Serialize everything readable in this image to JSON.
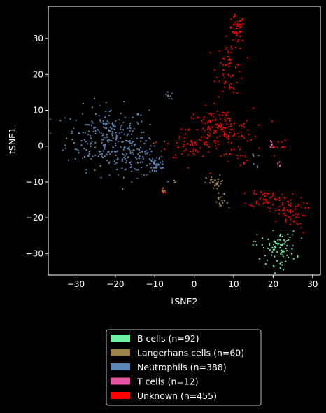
{
  "chart_data": {
    "type": "scatter",
    "xlabel": "tSNE2",
    "ylabel": "tSNE1",
    "xlim": [
      -37,
      32
    ],
    "ylim": [
      -36,
      39
    ],
    "xticks": [
      -30,
      -20,
      -10,
      0,
      10,
      20,
      30
    ],
    "yticks": [
      -30,
      -20,
      -10,
      0,
      10,
      20,
      30
    ],
    "grid": false,
    "legend_placement": "bottom-center, below plot",
    "background": "#000000",
    "series": [
      {
        "name": "B cells (n=92)",
        "color": "#6cf0a2",
        "n": 92,
        "clusters": [
          {
            "cx": 21.5,
            "cy": -28.5,
            "sx": 2.2,
            "sy": 2.3,
            "count": 88
          },
          {
            "cx": 16.5,
            "cy": -26.5,
            "sx": 0.8,
            "sy": 1.0,
            "count": 4
          }
        ]
      },
      {
        "name": "Langerhans cells (n=60)",
        "color": "#9c7f49",
        "n": 60,
        "clusters": [
          {
            "cx": 5.5,
            "cy": -10.3,
            "sx": 1.2,
            "sy": 1.0,
            "count": 30
          },
          {
            "cx": 6.8,
            "cy": -15.8,
            "sx": 0.9,
            "sy": 1.4,
            "count": 20
          },
          {
            "cx": -7.6,
            "cy": -12.8,
            "sx": 0.3,
            "sy": 0.7,
            "count": 5
          },
          {
            "cx": -5.0,
            "cy": -9.7,
            "sx": 0.3,
            "sy": 0.3,
            "count": 3
          },
          {
            "cx": 14.9,
            "cy": -2.5,
            "sx": 0.2,
            "sy": 0.2,
            "count": 2
          }
        ]
      },
      {
        "name": "Neutrophils (n=388)",
        "color": "#5b88b5",
        "n": 388,
        "clusters": [
          {
            "cx": -22.0,
            "cy": 2.5,
            "sx": 5.2,
            "sy": 4.3,
            "count": 250
          },
          {
            "cx": -14.5,
            "cy": -3.5,
            "sx": 3.5,
            "sy": 2.5,
            "count": 90
          },
          {
            "cx": -9.5,
            "cy": -5.2,
            "sx": 1.2,
            "sy": 1.6,
            "count": 35
          },
          {
            "cx": -6.5,
            "cy": 14.0,
            "sx": 0.9,
            "sy": 0.5,
            "count": 8
          },
          {
            "cx": 15.5,
            "cy": -5.0,
            "sx": 0.5,
            "sy": 1.5,
            "count": 5
          }
        ]
      },
      {
        "name": "T cells (n=12)",
        "color": "#e854a2",
        "n": 12,
        "clusters": [
          {
            "cx": 19.8,
            "cy": 0.5,
            "sx": 0.4,
            "sy": 0.9,
            "count": 8
          },
          {
            "cx": 21.3,
            "cy": -4.8,
            "sx": 0.3,
            "sy": 0.6,
            "count": 4
          }
        ]
      },
      {
        "name": "Unknown (n=455)",
        "color": "#ff0000",
        "n": 455,
        "clusters": [
          {
            "cx": 10.8,
            "cy": 32.5,
            "sx": 1.0,
            "sy": 2.0,
            "count": 45
          },
          {
            "cx": 9.2,
            "cy": 22.0,
            "sx": 1.8,
            "sy": 4.0,
            "count": 65
          },
          {
            "cx": 6.5,
            "cy": 4.5,
            "sx": 4.2,
            "sy": 3.0,
            "count": 150
          },
          {
            "cx": -1.0,
            "cy": 0.5,
            "sx": 3.0,
            "sy": 2.3,
            "count": 55
          },
          {
            "cx": 18.0,
            "cy": -14.5,
            "sx": 2.0,
            "sy": 1.3,
            "count": 45
          },
          {
            "cx": 23.5,
            "cy": -18.0,
            "sx": 2.3,
            "sy": 2.0,
            "count": 60
          },
          {
            "cx": 10.5,
            "cy": -3.0,
            "sx": 1.5,
            "sy": 1.5,
            "count": 15
          },
          {
            "cx": -7.5,
            "cy": -12.5,
            "sx": 0.3,
            "sy": 0.6,
            "count": 5
          },
          {
            "cx": 21.0,
            "cy": 0.0,
            "sx": 1.5,
            "sy": 1.2,
            "count": 10
          },
          {
            "cx": 26.5,
            "cy": -22.5,
            "sx": 1.0,
            "sy": 1.5,
            "count": 5
          }
        ]
      }
    ]
  },
  "legend": {
    "items": [
      {
        "label": "B cells (n=92)",
        "color": "#6cf0a2"
      },
      {
        "label": "Langerhans cells (n=60)",
        "color": "#9c7f49"
      },
      {
        "label": "Neutrophils (n=388)",
        "color": "#5b88b5"
      },
      {
        "label": "T cells (n=12)",
        "color": "#e854a2"
      },
      {
        "label": "Unknown (n=455)",
        "color": "#ff0000"
      }
    ]
  }
}
